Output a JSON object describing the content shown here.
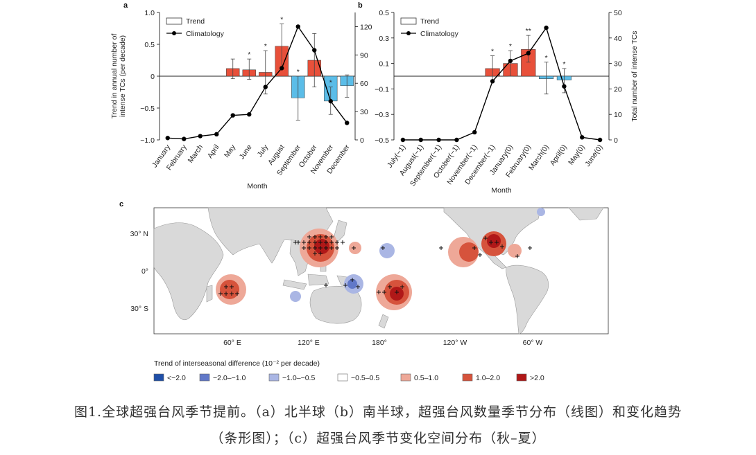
{
  "chart_data": [
    {
      "type": "bar+line",
      "panel_label": "a",
      "categories": [
        "January",
        "February",
        "March",
        "April",
        "May",
        "June",
        "July",
        "August",
        "September",
        "October",
        "November",
        "December"
      ],
      "series": [
        {
          "name": "Trend",
          "axis": "left",
          "values": [
            null,
            null,
            null,
            null,
            0.12,
            0.1,
            0.06,
            0.47,
            -0.34,
            0.25,
            -0.39,
            -0.15
          ],
          "error_low": [
            null,
            null,
            null,
            null,
            -0.04,
            -0.05,
            -0.28,
            0.12,
            -0.69,
            -0.17,
            -0.6,
            -0.33
          ],
          "error_high": [
            null,
            null,
            null,
            null,
            0.27,
            0.27,
            0.4,
            0.82,
            0.0,
            0.67,
            -0.17,
            0.02
          ],
          "significance": [
            "",
            "",
            "",
            "",
            "",
            "*",
            "*",
            "*",
            "*",
            "",
            "*",
            ""
          ]
        },
        {
          "name": "Climatology",
          "axis": "right",
          "values": [
            2,
            1,
            4,
            6,
            26,
            27,
            56,
            76,
            null,
            95,
            41,
            18
          ]
        }
      ],
      "climatology_peak": {
        "category": "September",
        "value": 120
      },
      "ylabel": "Trend in annual number of intense TCs (per decade)",
      "ylabel_lines": [
        "Trend in annual number of",
        "intense TCs (per decade)"
      ],
      "y2label": "",
      "xlabel": "Month",
      "ylim": [
        -1.0,
        1.0
      ],
      "y2lim": [
        0,
        135
      ],
      "yticks": [
        "1.0",
        "0.5",
        "0",
        "−0.5",
        "−1.0"
      ],
      "y2ticks": [
        "120",
        "90",
        "60",
        "30",
        "0"
      ],
      "legend": {
        "placement": "top-left",
        "entries": [
          "Trend",
          "Climatology"
        ]
      },
      "colors": {
        "positive": "#e8503a",
        "negative": "#5bbde8",
        "line": "#000000"
      }
    },
    {
      "type": "bar+line",
      "panel_label": "b",
      "categories": [
        "July(−1)",
        "August(−1)",
        "September(−1)",
        "October(−1)",
        "November(−1)",
        "December(−1)",
        "January(0)",
        "February(0)",
        "March(0)",
        "April(0)",
        "May(0)",
        "June(0)"
      ],
      "series": [
        {
          "name": "Trend",
          "axis": "left",
          "values": [
            null,
            null,
            null,
            null,
            null,
            0.06,
            0.1,
            0.21,
            -0.02,
            -0.03,
            null,
            null
          ],
          "error_low": [
            null,
            null,
            null,
            null,
            null,
            -0.03,
            0.0,
            0.11,
            -0.14,
            -0.13,
            null,
            null
          ],
          "error_high": [
            null,
            null,
            null,
            null,
            null,
            0.16,
            0.2,
            0.32,
            0.11,
            0.06,
            null,
            null
          ],
          "significance": [
            "",
            "",
            "",
            "",
            "",
            "*",
            "*",
            "**",
            "*",
            "*",
            "",
            ""
          ]
        },
        {
          "name": "Climatology",
          "axis": "right",
          "values": [
            0,
            0,
            0,
            0,
            3,
            23,
            31,
            34,
            44,
            21,
            1,
            0
          ]
        }
      ],
      "ylabel": "",
      "y2label": "Total number of intense TCs",
      "xlabel": "Month",
      "ylim": [
        -0.5,
        0.5
      ],
      "y2lim": [
        0,
        50
      ],
      "yticks": [
        "0.5",
        "0.3",
        "0.1",
        "−0.1",
        "−0.3",
        "−0.5"
      ],
      "y2ticks": [
        "50",
        "40",
        "30",
        "20",
        "10",
        "0"
      ],
      "legend": {
        "placement": "top-left",
        "entries": [
          "Trend",
          "Climatology"
        ]
      },
      "colors": {
        "positive": "#e8503a",
        "negative": "#5bbde8",
        "line": "#000000"
      }
    },
    {
      "type": "heatmap",
      "panel_label": "c",
      "yticks": [
        "30° N",
        "0°",
        "30° S"
      ],
      "xticks": [
        "60° E",
        "120° E",
        "180°",
        "120° W",
        "60° W"
      ],
      "legend": {
        "title": "Trend of interseasonal difference (10⁻² per decade)",
        "placement": "bottom",
        "entries": [
          {
            "label": "<−2.0",
            "color": "#1f4fa8"
          },
          {
            "label": "−2.0–−1.0",
            "color": "#6178c8"
          },
          {
            "label": "−1.0–−0.5",
            "color": "#aab6e4"
          },
          {
            "label": "−0.5–0.5",
            "color": "#ffffff"
          },
          {
            "label": "0.5–1.0",
            "color": "#eea898"
          },
          {
            "label": "1.0–2.0",
            "color": "#d6533c"
          },
          {
            "label": ">2.0",
            "color": "#b01818"
          }
        ]
      }
    }
  ],
  "caption": {
    "line1": "图1.全球超强台风季节提前。（a）北半球（b）南半球，超强台风数量季节分布（线图）和变化趋势",
    "line2": "（条形图）；（c）超强台风季节变化空间分布（秋–夏）"
  }
}
